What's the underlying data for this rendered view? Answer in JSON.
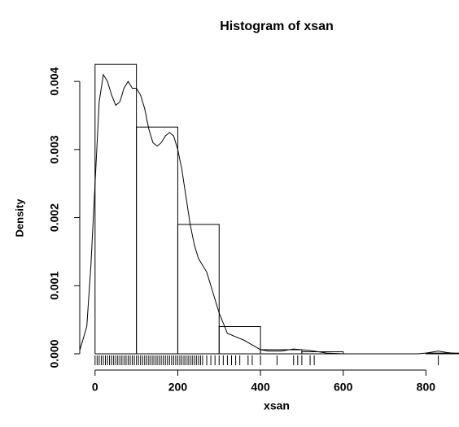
{
  "chart_data": {
    "type": "histogram",
    "title": "Histogram of xsan",
    "x_label": "xsan",
    "y_label": "Density",
    "bins": [
      0,
      100,
      200,
      300,
      400,
      500,
      600,
      700,
      800,
      900
    ],
    "values": [
      0.00425,
      0.00333,
      0.0019,
      0.0004,
      6e-05,
      3e-05,
      0,
      0,
      1e-05
    ],
    "xlim": [
      -37,
      880
    ],
    "ylim": [
      0,
      0.0043
    ],
    "xticks": [
      0,
      200,
      400,
      600,
      800
    ],
    "yticks": [
      {
        "value": 0,
        "label": "0.000"
      },
      {
        "value": 0.001,
        "label": "0.001"
      },
      {
        "value": 0.002,
        "label": "0.002"
      },
      {
        "value": 0.003,
        "label": "0.003"
      },
      {
        "value": 0.004,
        "label": "0.004"
      }
    ],
    "density": {
      "x": [
        -37,
        -20,
        -10,
        0,
        10,
        20,
        30,
        40,
        50,
        60,
        70,
        80,
        90,
        100,
        110,
        120,
        130,
        140,
        150,
        160,
        170,
        180,
        190,
        200,
        210,
        220,
        230,
        240,
        250,
        260,
        270,
        280,
        290,
        300,
        320,
        340,
        360,
        380,
        400,
        420,
        450,
        480,
        500,
        520,
        540,
        560,
        600,
        700,
        780,
        800,
        830,
        850,
        880
      ],
      "y": [
        5e-05,
        0.0004,
        0.0013,
        0.0025,
        0.0037,
        0.0041,
        0.004,
        0.0038,
        0.00365,
        0.0037,
        0.0039,
        0.004,
        0.0039,
        0.0039,
        0.0038,
        0.0036,
        0.0033,
        0.0031,
        0.00305,
        0.0031,
        0.0032,
        0.00325,
        0.0032,
        0.003,
        0.0027,
        0.0023,
        0.0019,
        0.0016,
        0.0014,
        0.0013,
        0.0012,
        0.001,
        0.0008,
        0.0006,
        0.0003,
        0.00025,
        0.0002,
        0.00013,
        6e-05,
        4e-05,
        4e-05,
        7e-05,
        6e-05,
        5e-05,
        3e-05,
        1e-05,
        0,
        0,
        0,
        1e-05,
        4e-05,
        2e-05,
        0
      ]
    },
    "rug": [
      0,
      5,
      10,
      15,
      20,
      25,
      30,
      35,
      40,
      45,
      50,
      55,
      60,
      65,
      70,
      75,
      80,
      85,
      90,
      95,
      100,
      105,
      110,
      115,
      120,
      125,
      130,
      135,
      140,
      145,
      150,
      155,
      160,
      165,
      170,
      175,
      180,
      185,
      190,
      195,
      200,
      205,
      210,
      215,
      220,
      225,
      230,
      235,
      240,
      245,
      250,
      255,
      260,
      270,
      280,
      290,
      300,
      310,
      320,
      330,
      340,
      350,
      370,
      380,
      400,
      440,
      480,
      490,
      500,
      520,
      530,
      830
    ]
  }
}
